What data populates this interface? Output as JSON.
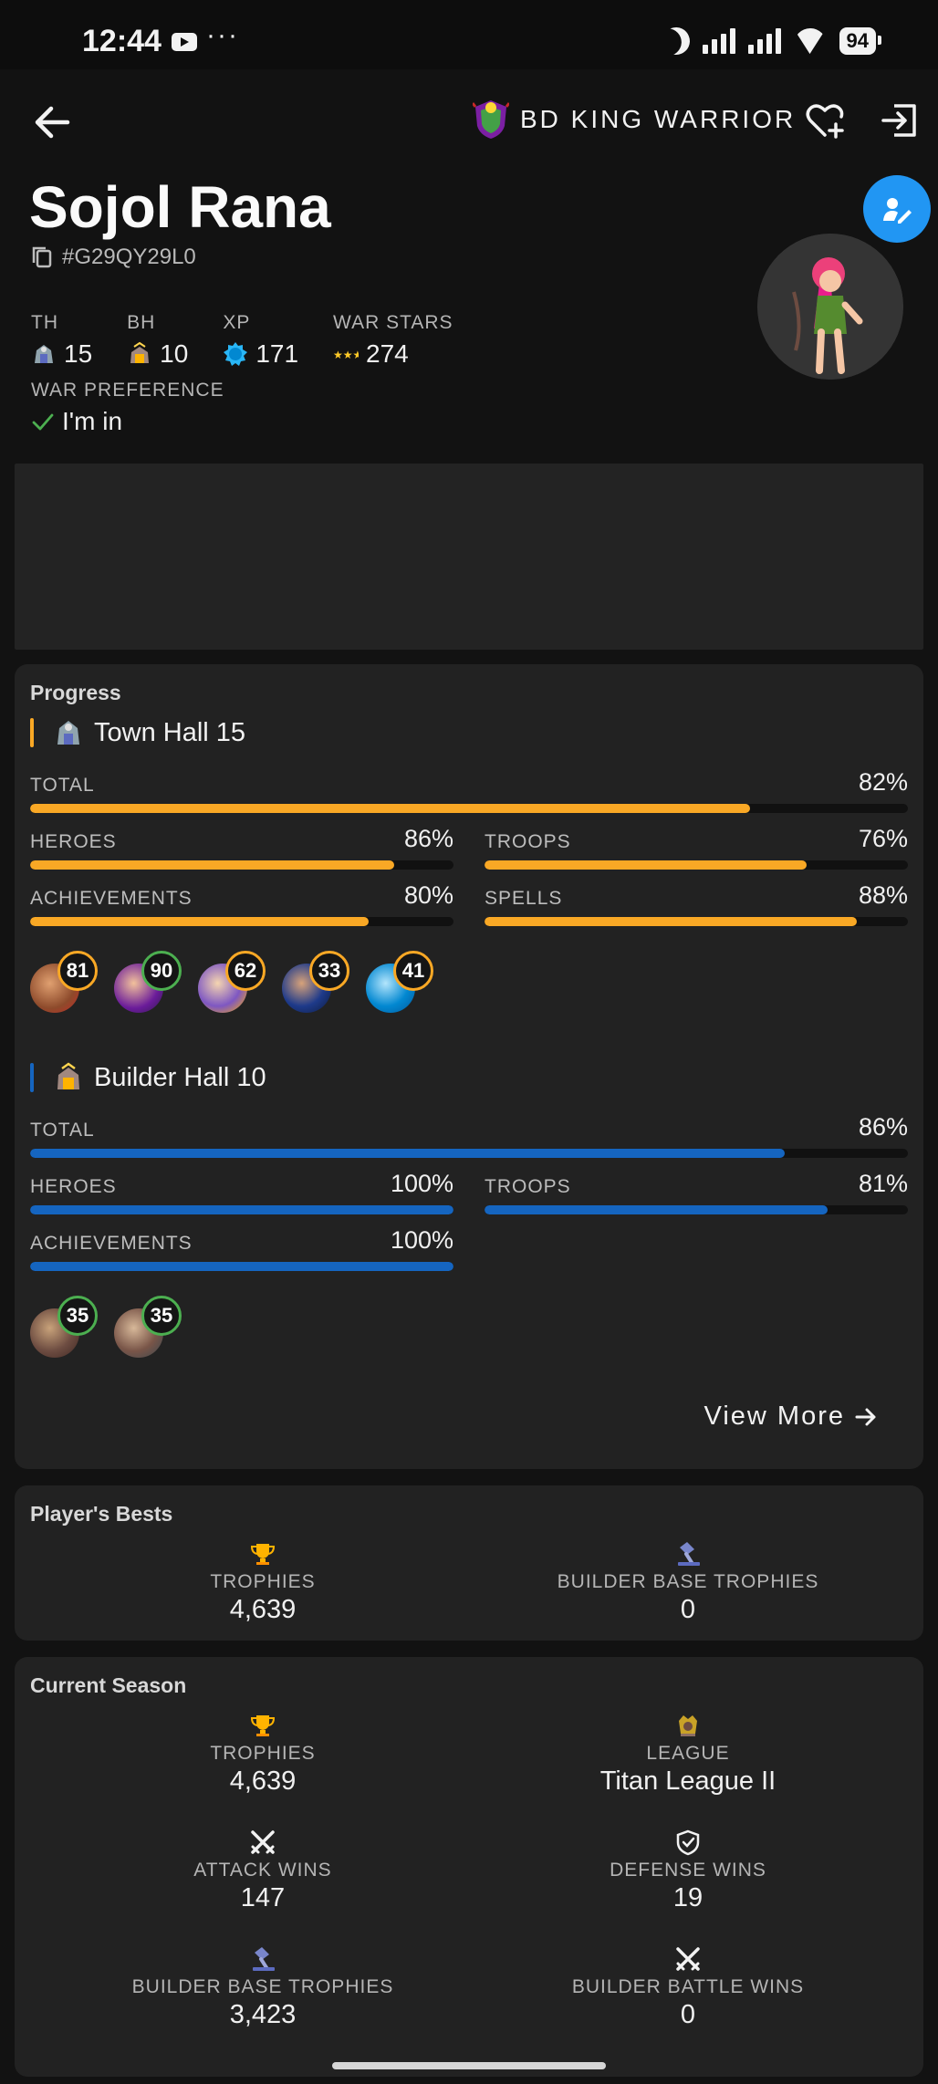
{
  "status_bar": {
    "time": "12:44",
    "dots": "···",
    "battery": "94"
  },
  "header": {
    "clan_name": "BD KING WARRIOR"
  },
  "player": {
    "name": "Sojol Rana",
    "tag": "#G29QY29L0",
    "stats": [
      {
        "label": "TH",
        "value": "15",
        "icon": "town-hall-icon"
      },
      {
        "label": "BH",
        "value": "10",
        "icon": "builder-hall-icon"
      },
      {
        "label": "XP",
        "value": "171",
        "icon": "xp-badge-icon"
      },
      {
        "label": "WAR STARS",
        "value": "274",
        "icon": "stars-icon"
      }
    ],
    "war_preference": {
      "label": "WAR PREFERENCE",
      "value": "I'm in"
    }
  },
  "progress": {
    "title": "Progress",
    "home": {
      "hall": "Town Hall 15",
      "accent": "#f9a825",
      "total": {
        "label": "TOTAL",
        "pct": "82%",
        "value": 82
      },
      "heroes": {
        "label": "HEROES",
        "pct": "86%",
        "value": 86
      },
      "troops": {
        "label": "TROOPS",
        "pct": "76%",
        "value": 76
      },
      "achievements": {
        "label": "ACHIEVEMENTS",
        "pct": "80%",
        "value": 80
      },
      "spells": {
        "label": "SPELLS",
        "pct": "88%",
        "value": 88
      },
      "hero_levels": [
        {
          "level": "81",
          "name": "barbarian-king",
          "ring": "#f9a825"
        },
        {
          "level": "90",
          "name": "archer-queen",
          "ring": "#4caf50"
        },
        {
          "level": "62",
          "name": "grand-warden",
          "ring": "#f9a825"
        },
        {
          "level": "33",
          "name": "royal-champion",
          "ring": "#f9a825"
        },
        {
          "level": "41",
          "name": "electro-pet",
          "ring": "#f9a825"
        }
      ]
    },
    "builder": {
      "hall": "Builder Hall 10",
      "accent": "#1565c0",
      "total": {
        "label": "TOTAL",
        "pct": "86%",
        "value": 86
      },
      "heroes": {
        "label": "HEROES",
        "pct": "100%",
        "value": 100
      },
      "troops": {
        "label": "TROOPS",
        "pct": "81%",
        "value": 81
      },
      "achievements": {
        "label": "ACHIEVEMENTS",
        "pct": "100%",
        "value": 100
      },
      "hero_levels": [
        {
          "level": "35",
          "name": "battle-machine",
          "ring": "#4caf50"
        },
        {
          "level": "35",
          "name": "battle-copter",
          "ring": "#4caf50"
        }
      ]
    },
    "view_more": "View More"
  },
  "bests": {
    "title": "Player's Bests",
    "trophies": {
      "label": "TROPHIES",
      "value": "4,639"
    },
    "builder_trophies": {
      "label": "BUILDER BASE TROPHIES",
      "value": "0"
    }
  },
  "season": {
    "title": "Current Season",
    "trophies": {
      "label": "TROPHIES",
      "value": "4,639"
    },
    "league": {
      "label": "LEAGUE",
      "value": "Titan League II"
    },
    "attack_wins": {
      "label": "ATTACK WINS",
      "value": "147"
    },
    "defense_wins": {
      "label": "DEFENSE WINS",
      "value": "19"
    },
    "builder_trophies": {
      "label": "BUILDER BASE TROPHIES",
      "value": "3,423"
    },
    "builder_battle_wins": {
      "label": "BUILDER BATTLE WINS",
      "value": "0"
    }
  }
}
